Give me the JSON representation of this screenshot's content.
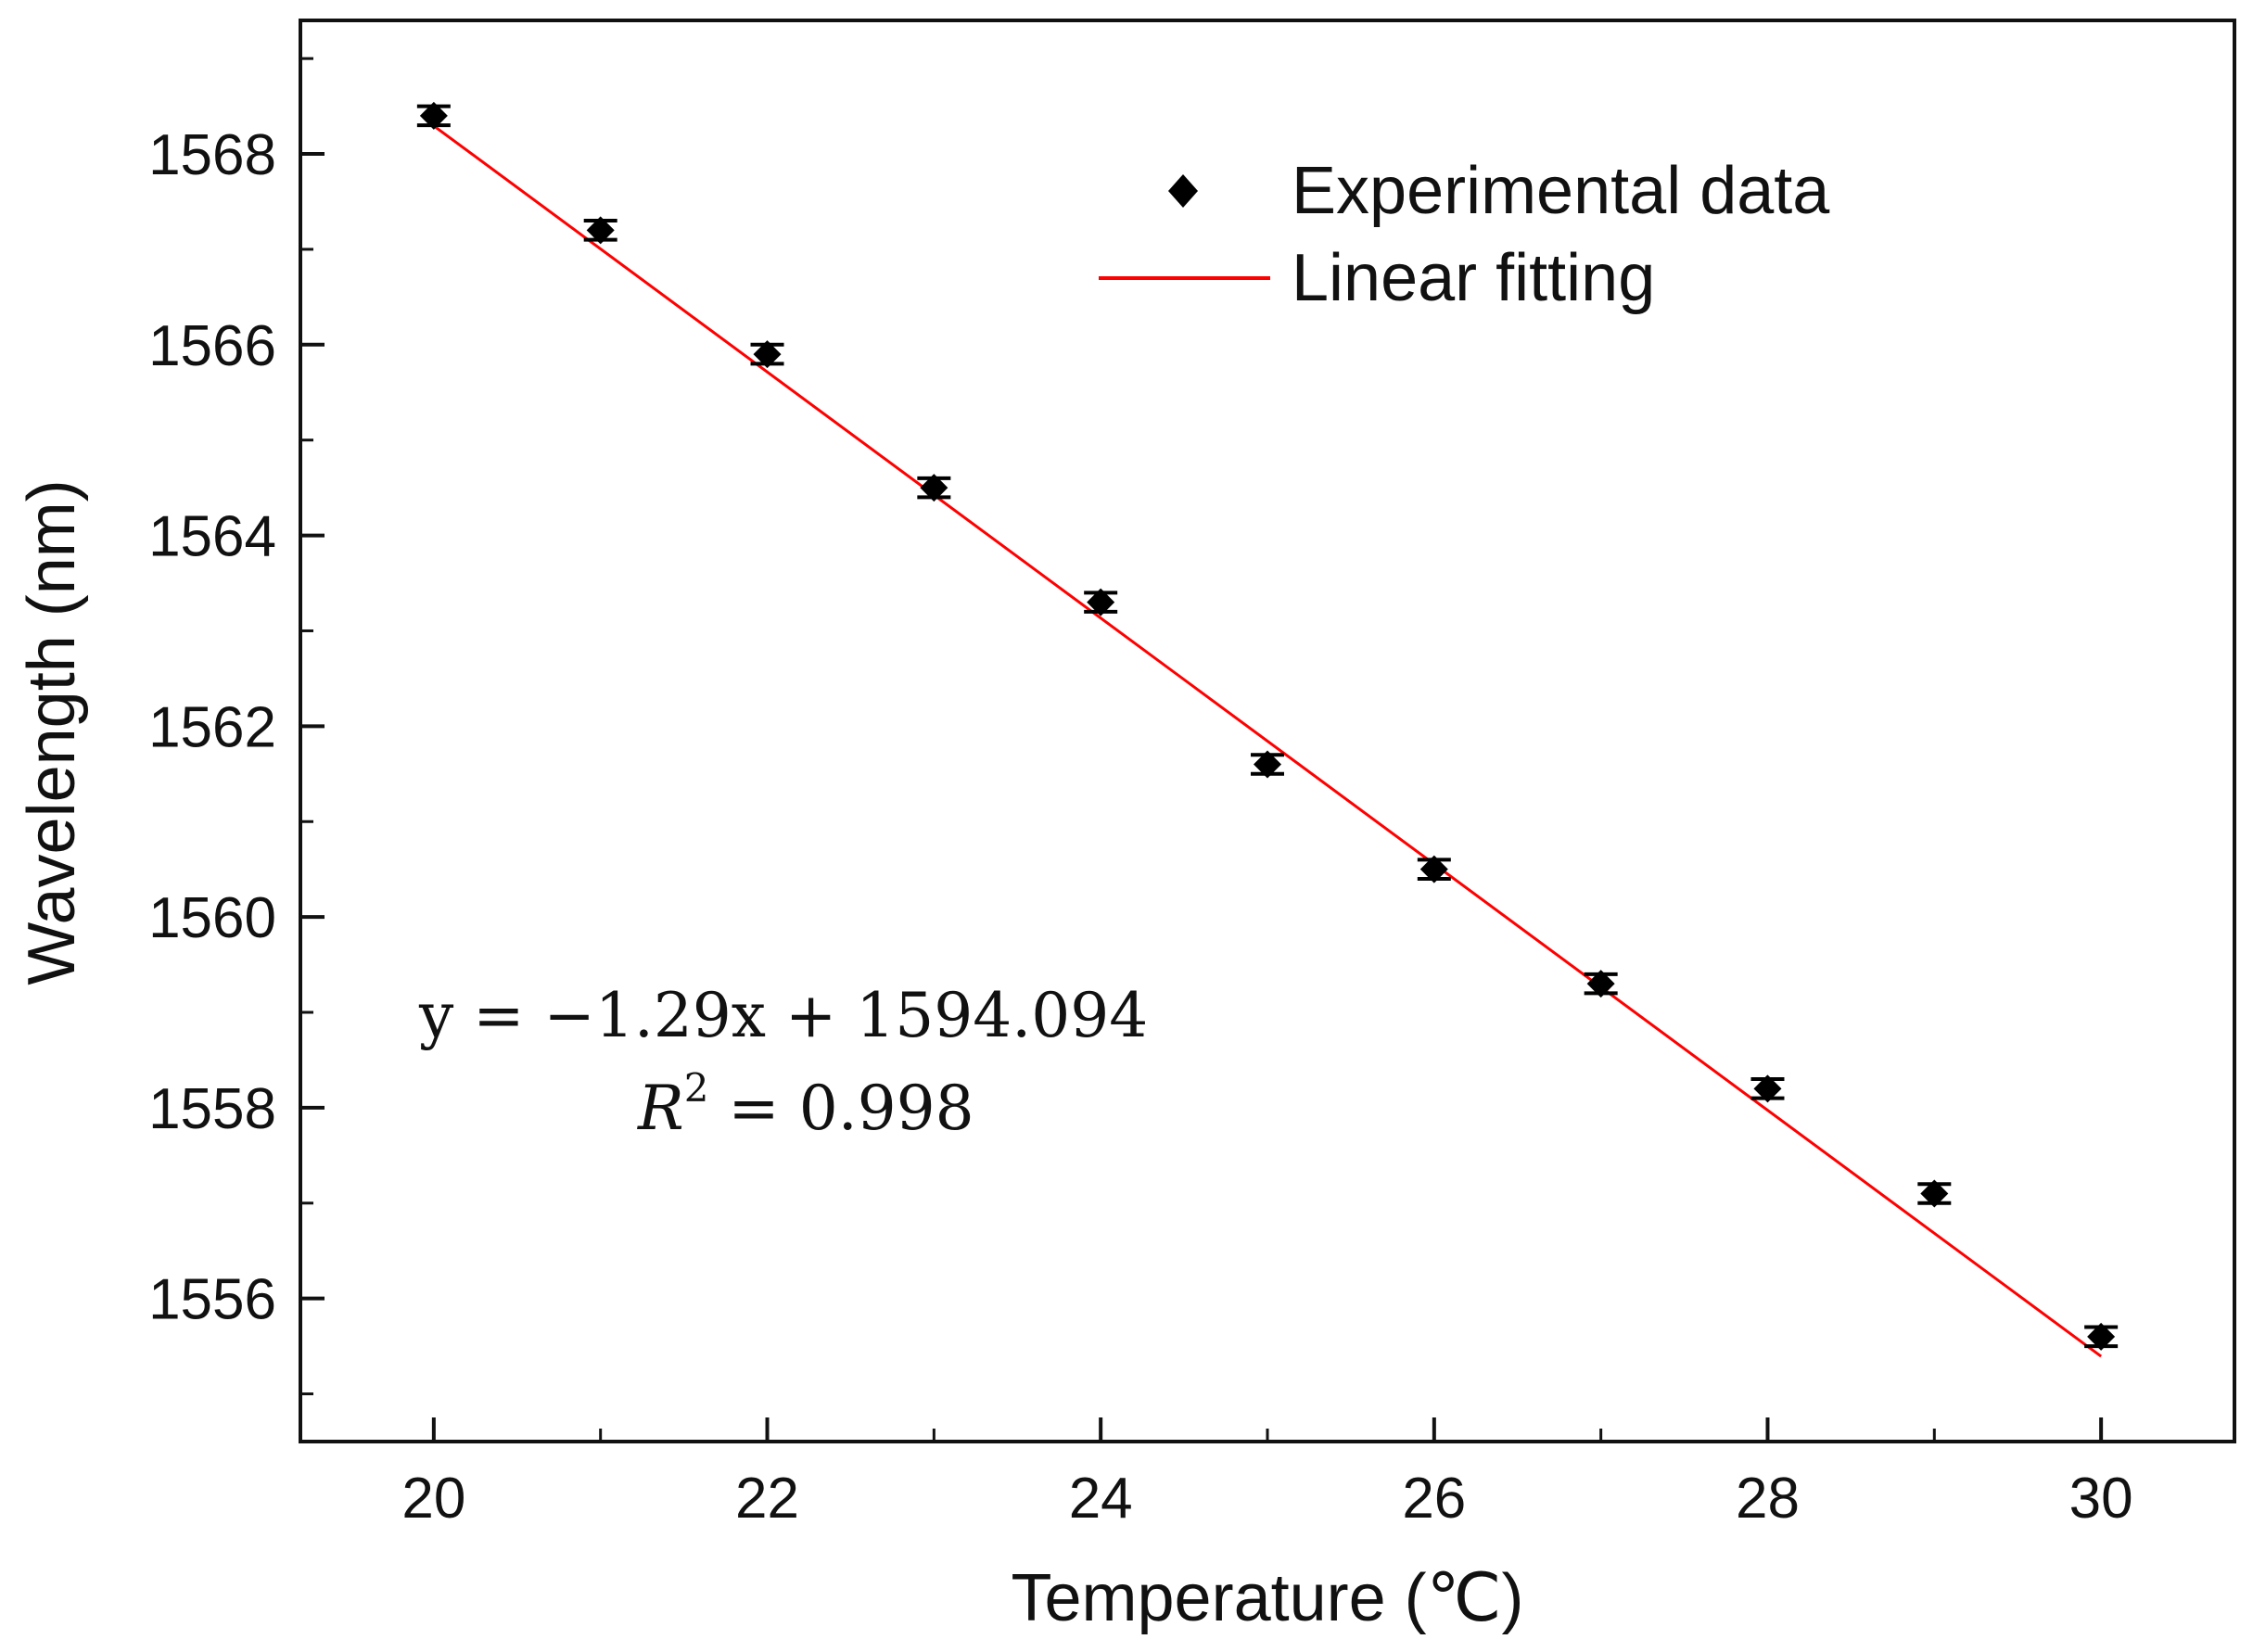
{
  "chart_data": {
    "type": "scatter",
    "title": "",
    "xlabel": "Temperature (℃)",
    "ylabel": "Wavelength (nm)",
    "xlim": [
      19.2,
      30.8
    ],
    "ylim": [
      1554.5,
      1569.4
    ],
    "x_ticks": [
      20,
      22,
      24,
      26,
      28,
      30
    ],
    "y_ticks": [
      1556,
      1558,
      1560,
      1562,
      1564,
      1566,
      1568
    ],
    "x_tick_labels": [
      "20",
      "22",
      "24",
      "26",
      "28",
      "30"
    ],
    "y_tick_labels": [
      "1556",
      "1558",
      "1560",
      "1562",
      "1564",
      "1566",
      "1568"
    ],
    "grid": false,
    "legend_position": "top-right",
    "series": [
      {
        "name": "Experimental data",
        "kind": "scatter",
        "marker": "diamond",
        "color": "#000000",
        "x": [
          20,
          21,
          22,
          23,
          24,
          25,
          26,
          27,
          28,
          29,
          30
        ],
        "y": [
          1568.4,
          1567.2,
          1565.9,
          1564.5,
          1563.3,
          1561.6,
          1560.5,
          1559.3,
          1558.2,
          1557.1,
          1555.6
        ],
        "error": 0.1
      },
      {
        "name": "Linear fitting",
        "kind": "line",
        "color": "#ff0000",
        "slope": -1.29,
        "intercept": 1594.094,
        "x_range": [
          20,
          30
        ]
      }
    ],
    "annotations": {
      "equation": "y = −1.29x + 1594.094",
      "r2_symbol": "R",
      "r2_exponent": "2",
      "r2_value": " = 0.998"
    }
  }
}
